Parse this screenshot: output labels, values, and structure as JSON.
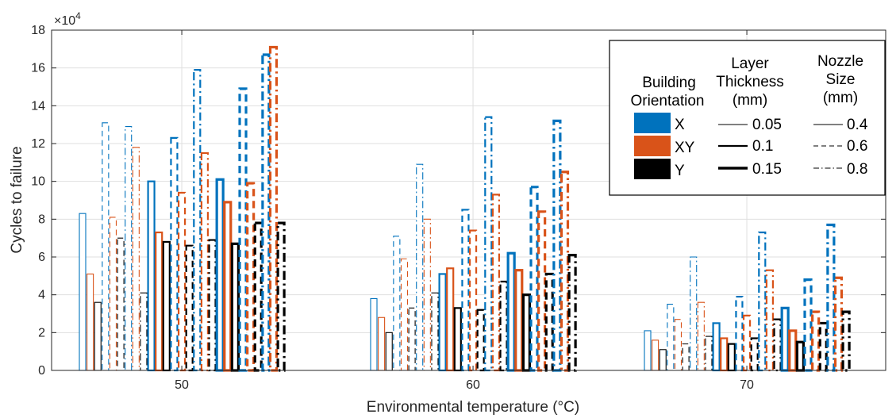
{
  "chart_data": {
    "type": "bar",
    "title": "",
    "xlabel": "Environmental temperature (°C)",
    "ylabel": "Cycles to failure",
    "y_multiplier_label": "×10",
    "y_multiplier_exp": "4",
    "ylim": [
      0,
      18
    ],
    "yticks": [
      0,
      2,
      4,
      6,
      8,
      10,
      12,
      14,
      16,
      18
    ],
    "categories": [
      "50",
      "60",
      "70"
    ],
    "grid": true,
    "legend_position": "top-right",
    "colors": {
      "X": "#0072BD",
      "XY": "#D95319",
      "Y": "#000000"
    },
    "series_order_note": "",
    "bars": [
      {
        "o": "X",
        "t": 0.05,
        "n": 0.4,
        "v": [
          8.3,
          3.8,
          2.1
        ]
      },
      {
        "o": "XY",
        "t": 0.05,
        "n": 0.4,
        "v": [
          5.1,
          2.8,
          1.6
        ]
      },
      {
        "o": "Y",
        "t": 0.05,
        "n": 0.4,
        "v": [
          3.6,
          2.0,
          1.1
        ]
      },
      {
        "o": "X",
        "t": 0.05,
        "n": 0.6,
        "v": [
          13.1,
          7.1,
          3.5
        ]
      },
      {
        "o": "XY",
        "t": 0.05,
        "n": 0.6,
        "v": [
          8.1,
          5.9,
          2.7
        ]
      },
      {
        "o": "Y",
        "t": 0.05,
        "n": 0.6,
        "v": [
          7.0,
          3.3,
          1.4
        ]
      },
      {
        "o": "X",
        "t": 0.05,
        "n": 0.8,
        "v": [
          12.9,
          10.9,
          6.0
        ]
      },
      {
        "o": "XY",
        "t": 0.05,
        "n": 0.8,
        "v": [
          11.8,
          8.0,
          3.6
        ]
      },
      {
        "o": "Y",
        "t": 0.05,
        "n": 0.8,
        "v": [
          4.1,
          4.1,
          1.8
        ]
      },
      {
        "o": "X",
        "t": 0.1,
        "n": 0.4,
        "v": [
          10.0,
          5.1,
          2.5
        ]
      },
      {
        "o": "XY",
        "t": 0.1,
        "n": 0.4,
        "v": [
          7.3,
          5.4,
          1.7
        ]
      },
      {
        "o": "Y",
        "t": 0.1,
        "n": 0.4,
        "v": [
          6.8,
          3.3,
          1.4
        ]
      },
      {
        "o": "X",
        "t": 0.1,
        "n": 0.6,
        "v": [
          12.3,
          8.5,
          3.9
        ]
      },
      {
        "o": "XY",
        "t": 0.1,
        "n": 0.6,
        "v": [
          9.4,
          7.4,
          2.9
        ]
      },
      {
        "o": "Y",
        "t": 0.1,
        "n": 0.6,
        "v": [
          6.6,
          3.2,
          1.7
        ]
      },
      {
        "o": "X",
        "t": 0.1,
        "n": 0.8,
        "v": [
          15.9,
          13.4,
          7.3
        ]
      },
      {
        "o": "XY",
        "t": 0.1,
        "n": 0.8,
        "v": [
          11.5,
          9.3,
          5.3
        ]
      },
      {
        "o": "Y",
        "t": 0.1,
        "n": 0.8,
        "v": [
          6.9,
          4.7,
          2.7
        ]
      },
      {
        "o": "X",
        "t": 0.15,
        "n": 0.4,
        "v": [
          10.1,
          6.2,
          3.3
        ]
      },
      {
        "o": "XY",
        "t": 0.15,
        "n": 0.4,
        "v": [
          8.9,
          5.3,
          2.1
        ]
      },
      {
        "o": "Y",
        "t": 0.15,
        "n": 0.4,
        "v": [
          6.7,
          4.0,
          1.5
        ]
      },
      {
        "o": "X",
        "t": 0.15,
        "n": 0.6,
        "v": [
          14.9,
          9.7,
          4.8
        ]
      },
      {
        "o": "XY",
        "t": 0.15,
        "n": 0.6,
        "v": [
          9.9,
          8.4,
          3.1
        ]
      },
      {
        "o": "Y",
        "t": 0.15,
        "n": 0.6,
        "v": [
          7.8,
          5.1,
          2.5
        ]
      },
      {
        "o": "X",
        "t": 0.15,
        "n": 0.8,
        "v": [
          16.7,
          13.2,
          7.7
        ]
      },
      {
        "o": "XY",
        "t": 0.15,
        "n": 0.8,
        "v": [
          17.1,
          10.5,
          4.9
        ]
      },
      {
        "o": "Y",
        "t": 0.15,
        "n": 0.8,
        "v": [
          7.8,
          6.1,
          3.1
        ]
      }
    ]
  },
  "legend": {
    "col1_title_line1": "Building",
    "col1_title_line2": "Orientation",
    "col2_title_line1": "Layer",
    "col2_title_line2": "Thickness",
    "col2_title_line3": "(mm)",
    "col3_title_line1": "Nozzle",
    "col3_title_line2": "Size",
    "col3_title_line3": "(mm)",
    "orientations": [
      "X",
      "XY",
      "Y"
    ],
    "thicknesses": [
      "0.05",
      "0.1",
      "0.15"
    ],
    "nozzles": [
      "0.4",
      "0.6",
      "0.8"
    ]
  }
}
